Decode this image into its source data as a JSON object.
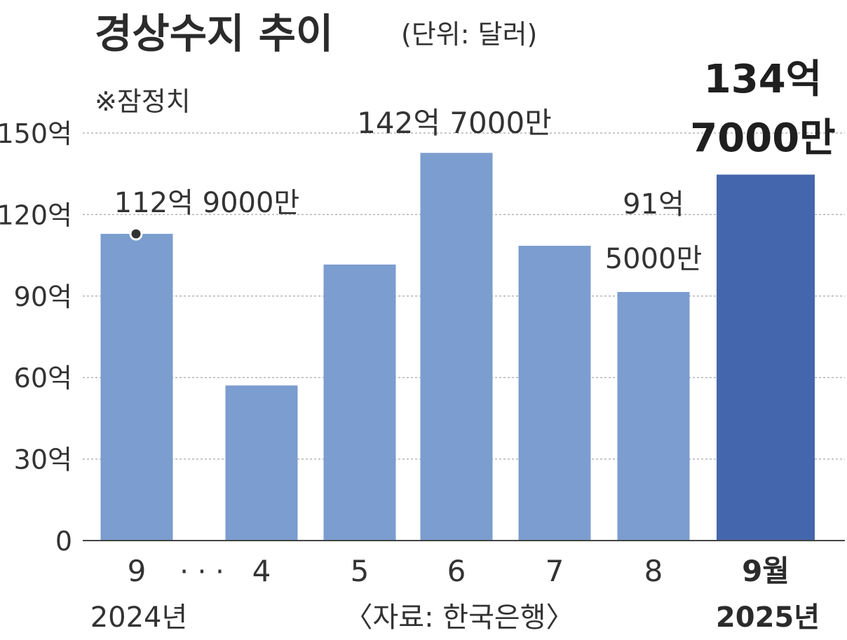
{
  "chart_data": {
    "type": "bar",
    "title": "경상수지 추이",
    "unit_note": "(단위: 달러)",
    "note": "※잠정치",
    "source": "〈자료: 한국은행〉",
    "categories": [
      "9",
      "4",
      "5",
      "6",
      "7",
      "8",
      "9월"
    ],
    "values": [
      112.9,
      57.1,
      101.6,
      142.7,
      108.5,
      91.5,
      134.7
    ],
    "value_unit": "억",
    "ylim": [
      0,
      150
    ],
    "yticks": [
      0,
      30,
      60,
      90,
      120,
      150
    ],
    "ytick_labels": [
      "0",
      "30억",
      "60억",
      "90억",
      "120억",
      "150억"
    ],
    "grid": true,
    "gap_marker": "· · ·",
    "year_labels": {
      "start": "2024년",
      "end": "2025년"
    },
    "data_labels": [
      {
        "index": 0,
        "lines": [
          "112억 9000만"
        ]
      },
      {
        "index": 3,
        "lines": [
          "142억 7000만"
        ]
      },
      {
        "index": 5,
        "lines": [
          "91억",
          "5000만"
        ]
      },
      {
        "index": 6,
        "lines": [
          "134억",
          "7000만"
        ]
      }
    ],
    "colors": {
      "bar": "#7b9dcf",
      "bar_highlight": "#4466ac",
      "grid": "#b5b5b5",
      "text": "#333333",
      "title": "#2b2b2b"
    }
  }
}
